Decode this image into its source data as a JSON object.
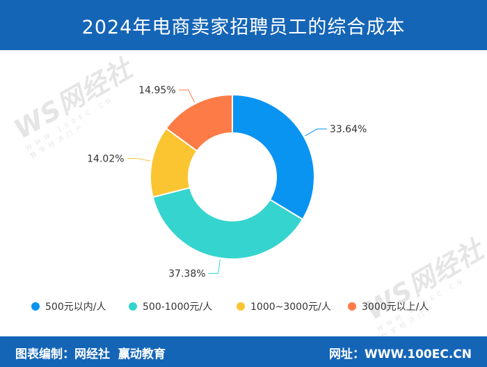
{
  "header": {
    "title": "2024年电商卖家招聘员工的综合成本"
  },
  "footer": {
    "left_text": "图表编制：网经社  赢动教育",
    "right_text": "网址：WWW.100EC.CN"
  },
  "watermark": {
    "logo": "WS网经社",
    "url": "WWW.100EC.CN",
    "tagline": "数字经济门户"
  },
  "chart_data": {
    "type": "pie",
    "style": "donut",
    "title": "2024年电商卖家招聘员工的综合成本",
    "start_angle_deg": 0,
    "direction": "clockwise",
    "legend_position": "bottom",
    "slices": [
      {
        "label": "500元以内/人",
        "value": 33.64,
        "value_label": "33.64%",
        "color": "#0a94f2"
      },
      {
        "label": "500-1000元/人",
        "value": 37.38,
        "value_label": "37.38%",
        "color": "#36d4cf"
      },
      {
        "label": "1000~3000元/人",
        "value": 14.02,
        "value_label": "14.02%",
        "color": "#fbc531"
      },
      {
        "label": "3000元以上/人",
        "value": 14.95,
        "value_label": "14.95%",
        "color": "#fd7b46"
      }
    ]
  }
}
